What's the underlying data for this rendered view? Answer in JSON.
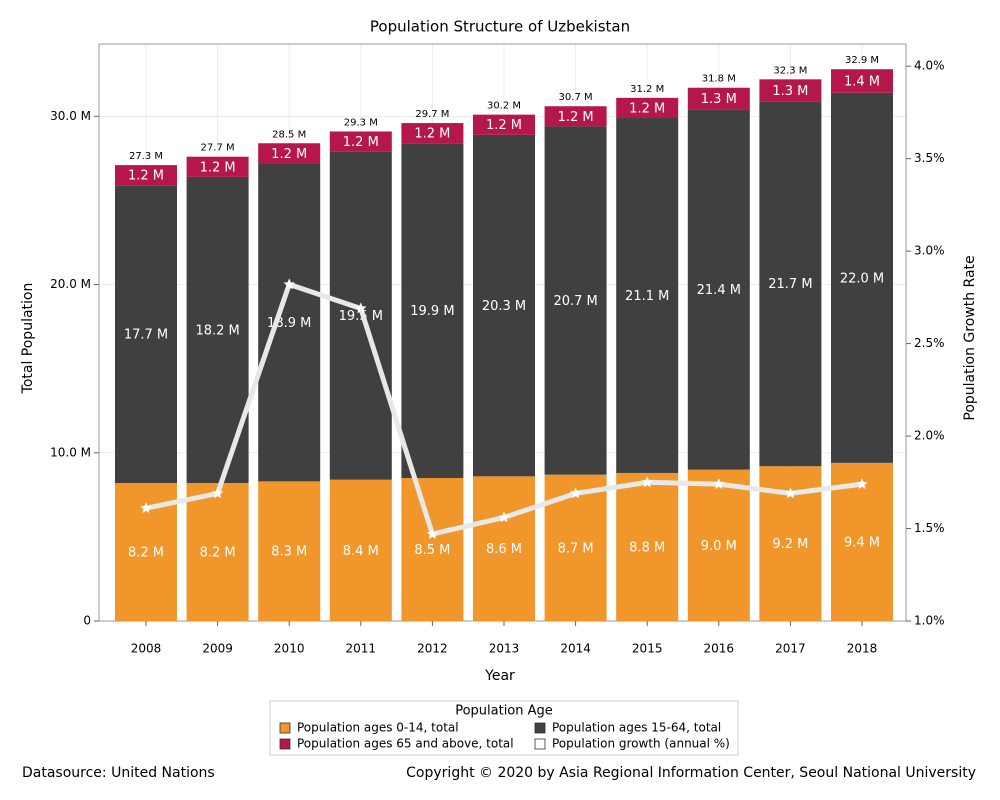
{
  "chart_data": {
    "type": "bar",
    "stacked": true,
    "title": "Population Structure of Uzbekistan",
    "x_label": "Year",
    "y_label": "Total Population",
    "y2_label": "Population Growth Rate",
    "categories": [
      "2008",
      "2009",
      "2010",
      "2011",
      "2012",
      "2013",
      "2014",
      "2015",
      "2016",
      "2017",
      "2018"
    ],
    "series": [
      {
        "name": "Population ages 0-14, total",
        "type": "bar",
        "color": "#f0962a",
        "values": [
          8.2,
          8.2,
          8.3,
          8.4,
          8.5,
          8.6,
          8.7,
          8.8,
          9.0,
          9.2,
          9.4
        ],
        "value_labels": [
          "8.2 M",
          "8.2 M",
          "8.3 M",
          "8.4 M",
          "8.5 M",
          "8.6 M",
          "8.7 M",
          "8.8 M",
          "9.0 M",
          "9.2 M",
          "9.4 M"
        ]
      },
      {
        "name": "Population ages 15-64, total",
        "type": "bar",
        "color": "#404040",
        "values": [
          17.7,
          18.2,
          18.9,
          19.5,
          19.9,
          20.3,
          20.7,
          21.1,
          21.4,
          21.7,
          22.0
        ],
        "value_labels": [
          "17.7 M",
          "18.2 M",
          "18.9 M",
          "19.5 M",
          "19.9 M",
          "20.3 M",
          "20.7 M",
          "21.1 M",
          "21.4 M",
          "21.7 M",
          "22.0 M"
        ]
      },
      {
        "name": "Population ages 65 and above, total",
        "type": "bar",
        "color": "#b5174a",
        "values": [
          1.2,
          1.2,
          1.2,
          1.2,
          1.2,
          1.2,
          1.2,
          1.2,
          1.3,
          1.3,
          1.4
        ],
        "value_labels": [
          "1.2 M",
          "1.2 M",
          "1.2 M",
          "1.2 M",
          "1.2 M",
          "1.2 M",
          "1.2 M",
          "1.2 M",
          "1.3 M",
          "1.3 M",
          "1.4 M"
        ]
      },
      {
        "name": "Population growth (annual %)",
        "type": "line",
        "axis": "y2",
        "color": "#e8e8e8",
        "values": [
          1.61,
          1.69,
          2.82,
          2.69,
          1.47,
          1.56,
          1.69,
          1.75,
          1.74,
          1.69,
          1.74
        ]
      }
    ],
    "totals": {
      "values": [
        27.3,
        27.7,
        28.5,
        29.3,
        29.7,
        30.2,
        30.7,
        31.2,
        31.8,
        32.3,
        32.9
      ],
      "value_labels": [
        "27.3 M",
        "27.7 M",
        "28.5 M",
        "29.3 M",
        "29.7 M",
        "30.2 M",
        "30.7 M",
        "31.2 M",
        "31.8 M",
        "32.3 M",
        "32.9 M"
      ]
    },
    "ylim": [
      0,
      34.3
    ],
    "yticks": [
      0,
      {
        "value": 10,
        "label": "10.0 M"
      },
      {
        "value": 20,
        "label": "20.0 M"
      },
      {
        "value": 30,
        "label": "30.0 M"
      }
    ],
    "y2lim": [
      1,
      4.12
    ],
    "y2ticks": [
      {
        "value": 1,
        "label": "1.0%"
      },
      {
        "value": 1.5,
        "label": "1.5%"
      },
      {
        "value": 2,
        "label": "2.0%"
      },
      {
        "value": 2.5,
        "label": "2.5%"
      },
      {
        "value": 3,
        "label": "3.0%"
      },
      {
        "value": 3.5,
        "label": "3.5%"
      },
      {
        "value": 4,
        "label": "4.0%"
      }
    ],
    "grid": true,
    "legend_title": "Population Age",
    "legend": "bottom",
    "source": "Datasource: United Nations",
    "copyright": "Copyright © 2020 by Asia Regional Information Center, Seoul National University"
  }
}
